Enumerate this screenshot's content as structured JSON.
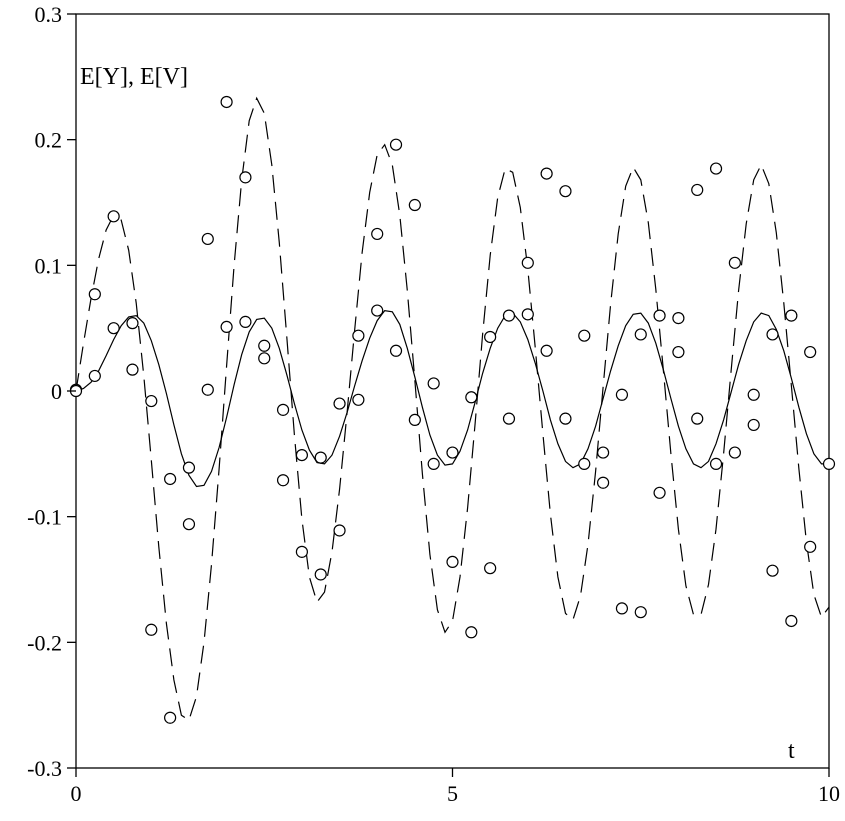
{
  "chart_data": {
    "type": "line",
    "ylabel": "E[Y], E[V]",
    "xlabel": "t",
    "xlim": [
      0,
      10
    ],
    "ylim": [
      -0.3,
      0.3
    ],
    "x_ticks": [
      0,
      5,
      10
    ],
    "y_ticks": [
      -0.3,
      -0.2,
      -0.1,
      0,
      0.1,
      0.2,
      0.3
    ],
    "x_tick_labels": [
      "0",
      "5",
      "10"
    ],
    "y_tick_labels": [
      "-0.3",
      "-0.2",
      "-0.1",
      "0",
      "0.1",
      "0.2",
      "0.3"
    ],
    "grid": false,
    "series": [
      {
        "style": "solid",
        "x": [
          0,
          0.1,
          0.2,
          0.3,
          0.4,
          0.5,
          0.6,
          0.7,
          0.8,
          0.9,
          1.0,
          1.1,
          1.2,
          1.3,
          1.4,
          1.5,
          1.6,
          1.7,
          1.8,
          1.9,
          2.0,
          2.1,
          2.2,
          2.3,
          2.4,
          2.5,
          2.6,
          2.7,
          2.8,
          2.9,
          3.0,
          3.1,
          3.2,
          3.3,
          3.4,
          3.5,
          3.6,
          3.7,
          3.8,
          3.9,
          4.0,
          4.1,
          4.2,
          4.3,
          4.4,
          4.5,
          4.6,
          4.7,
          4.8,
          4.9,
          5.0,
          5.1,
          5.2,
          5.3,
          5.4,
          5.5,
          5.6,
          5.7,
          5.8,
          5.9,
          6.0,
          6.1,
          6.2,
          6.3,
          6.4,
          6.5,
          6.6,
          6.7,
          6.8,
          6.9,
          7.0,
          7.1,
          7.2,
          7.3,
          7.4,
          7.5,
          7.6,
          7.7,
          7.8,
          7.9,
          8.0,
          8.1,
          8.2,
          8.3,
          8.4,
          8.5,
          8.6,
          8.7,
          8.8,
          8.9,
          9.0,
          9.1,
          9.2,
          9.3,
          9.4,
          9.5,
          9.6,
          9.7,
          9.8,
          9.9,
          10.0
        ],
        "y": [
          0,
          0.002,
          0.007,
          0.016,
          0.028,
          0.041,
          0.052,
          0.059,
          0.06,
          0.054,
          0.04,
          0.021,
          -0.002,
          -0.027,
          -0.05,
          -0.067,
          -0.076,
          -0.075,
          -0.064,
          -0.045,
          -0.021,
          0.005,
          0.029,
          0.047,
          0.057,
          0.058,
          0.05,
          0.034,
          0.013,
          -0.01,
          -0.031,
          -0.047,
          -0.057,
          -0.058,
          -0.051,
          -0.036,
          -0.017,
          0.004,
          0.024,
          0.042,
          0.056,
          0.064,
          0.063,
          0.053,
          0.034,
          0.011,
          -0.013,
          -0.035,
          -0.051,
          -0.059,
          -0.058,
          -0.048,
          -0.031,
          -0.009,
          0.014,
          0.034,
          0.05,
          0.06,
          0.062,
          0.055,
          0.041,
          0.022,
          0.0,
          -0.023,
          -0.042,
          -0.056,
          -0.061,
          -0.058,
          -0.046,
          -0.028,
          -0.006,
          0.016,
          0.036,
          0.052,
          0.061,
          0.062,
          0.054,
          0.038,
          0.017,
          -0.006,
          -0.028,
          -0.046,
          -0.058,
          -0.061,
          -0.056,
          -0.042,
          -0.023,
          -0.001,
          0.021,
          0.04,
          0.055,
          0.062,
          0.06,
          0.049,
          0.032,
          0.01,
          -0.013,
          -0.034,
          -0.05,
          -0.058,
          -0.058
        ]
      },
      {
        "style": "dashed",
        "x": [
          0,
          0.1,
          0.2,
          0.3,
          0.4,
          0.5,
          0.6,
          0.7,
          0.8,
          0.9,
          1.0,
          1.1,
          1.2,
          1.3,
          1.4,
          1.5,
          1.6,
          1.7,
          1.8,
          1.9,
          2.0,
          2.1,
          2.2,
          2.3,
          2.4,
          2.5,
          2.6,
          2.7,
          2.8,
          2.9,
          3.0,
          3.1,
          3.2,
          3.3,
          3.4,
          3.5,
          3.6,
          3.7,
          3.8,
          3.9,
          4.0,
          4.1,
          4.2,
          4.3,
          4.4,
          4.5,
          4.6,
          4.7,
          4.8,
          4.9,
          5.0,
          5.1,
          5.2,
          5.3,
          5.4,
          5.5,
          5.6,
          5.7,
          5.8,
          5.9,
          6.0,
          6.1,
          6.2,
          6.3,
          6.4,
          6.5,
          6.6,
          6.7,
          6.8,
          6.9,
          7.0,
          7.1,
          7.2,
          7.3,
          7.4,
          7.5,
          7.6,
          7.7,
          7.8,
          7.9,
          8.0,
          8.1,
          8.2,
          8.3,
          8.4,
          8.5,
          8.6,
          8.7,
          8.8,
          8.9,
          9.0,
          9.1,
          9.2,
          9.3,
          9.4,
          9.5,
          9.6,
          9.7,
          9.8,
          9.9,
          10.0
        ],
        "y": [
          0,
          0.038,
          0.074,
          0.105,
          0.128,
          0.14,
          0.136,
          0.112,
          0.07,
          0.012,
          -0.055,
          -0.124,
          -0.185,
          -0.23,
          -0.258,
          -0.262,
          -0.243,
          -0.2,
          -0.138,
          -0.062,
          0.02,
          0.1,
          0.168,
          0.215,
          0.233,
          0.221,
          0.18,
          0.118,
          0.043,
          -0.035,
          -0.102,
          -0.148,
          -0.168,
          -0.16,
          -0.128,
          -0.078,
          -0.017,
          0.048,
          0.11,
          0.158,
          0.188,
          0.196,
          0.18,
          0.14,
          0.08,
          0.008,
          -0.066,
          -0.13,
          -0.174,
          -0.192,
          -0.183,
          -0.148,
          -0.093,
          -0.026,
          0.045,
          0.108,
          0.154,
          0.177,
          0.174,
          0.146,
          0.097,
          0.034,
          -0.034,
          -0.098,
          -0.148,
          -0.177,
          -0.182,
          -0.163,
          -0.122,
          -0.064,
          0.003,
          0.069,
          0.125,
          0.163,
          0.178,
          0.168,
          0.134,
          0.081,
          0.017,
          -0.05,
          -0.11,
          -0.155,
          -0.178,
          -0.178,
          -0.154,
          -0.11,
          -0.05,
          0.016,
          0.08,
          0.133,
          0.168,
          0.18,
          0.165,
          0.126,
          0.07,
          0.004,
          -0.062,
          -0.12,
          -0.162,
          -0.18,
          -0.172
        ]
      },
      {
        "style": "markers",
        "marker": "open-circle",
        "x": [
          0,
          0.25,
          0.5,
          0.75,
          1.0,
          1.25,
          1.5,
          1.75,
          2.0,
          2.25,
          2.5,
          2.75,
          3.0,
          3.25,
          3.5,
          3.75,
          4.0,
          4.25,
          4.5,
          4.75,
          5.0,
          5.25,
          5.5,
          5.75,
          6.0,
          6.25,
          6.5,
          6.75,
          7.0,
          7.25,
          7.5,
          7.75,
          8.0,
          8.25,
          8.5,
          8.75,
          9.0,
          9.25,
          9.5,
          9.75,
          10.0
        ],
        "y": [
          0.001,
          0.012,
          0.05,
          0.054,
          -0.008,
          -0.07,
          -0.061,
          0.001,
          0.051,
          0.055,
          0.026,
          -0.015,
          -0.051,
          -0.053,
          -0.01,
          0.044,
          0.064,
          0.032,
          -0.023,
          -0.058,
          -0.049,
          -0.005,
          0.043,
          0.06,
          0.061,
          0.032,
          -0.022,
          -0.058,
          -0.049,
          -0.003,
          0.045,
          0.06,
          0.031,
          -0.022,
          -0.058,
          -0.049,
          -0.003,
          0.045,
          0.06,
          0.031,
          -0.058
        ]
      },
      {
        "style": "markers",
        "marker": "open-circle",
        "x": [
          0,
          0.25,
          0.5,
          0.75,
          1.0,
          1.25,
          1.5,
          1.75,
          2.0,
          2.25,
          2.5,
          2.75,
          3.0,
          3.25,
          3.5,
          3.75,
          4.0,
          4.25,
          4.5,
          4.75,
          5.0,
          5.25,
          5.5,
          5.75,
          6.0,
          6.25,
          6.5,
          6.75,
          7.0,
          7.25,
          7.5,
          7.75,
          8.0,
          8.25,
          8.5,
          8.75,
          9.0,
          9.25,
          9.5,
          9.75
        ],
        "y": [
          0,
          0.077,
          0.139,
          0.017,
          -0.19,
          -0.26,
          -0.106,
          0.121,
          0.23,
          0.17,
          0.036,
          -0.071,
          -0.128,
          -0.146,
          -0.111,
          -0.007,
          0.125,
          0.196,
          0.148,
          0.006,
          -0.136,
          -0.192,
          -0.141,
          -0.022,
          0.102,
          0.173,
          0.159,
          0.044,
          -0.073,
          -0.173,
          -0.176,
          -0.081,
          0.058,
          0.16,
          0.177,
          0.102,
          -0.027,
          -0.143,
          -0.183,
          -0.124
        ]
      }
    ]
  }
}
